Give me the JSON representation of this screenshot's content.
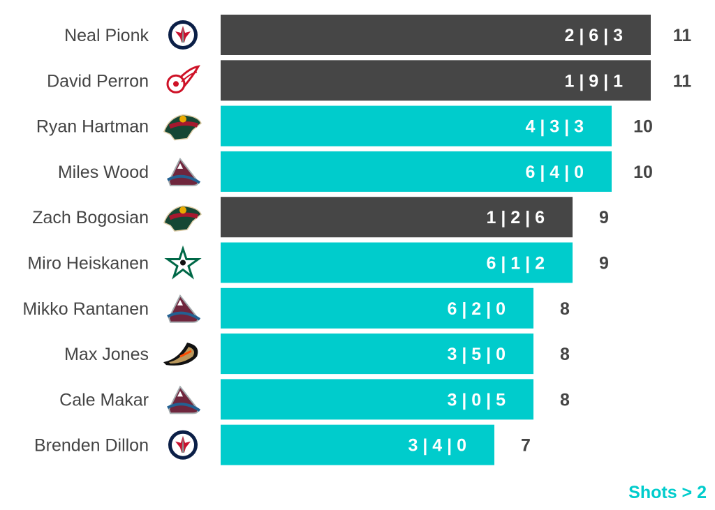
{
  "chart_data": {
    "type": "bar",
    "orientation": "horizontal",
    "categories": [
      "Neal Pionk",
      "David Perron",
      "Ryan Hartman",
      "Miles Wood",
      "Zach Bogosian",
      "Miro Heiskanen",
      "Mikko Rantanen",
      "Max Jones",
      "Cale Makar",
      "Brenden Dillon"
    ],
    "values": [
      11,
      11,
      10,
      10,
      9,
      9,
      8,
      8,
      8,
      7
    ],
    "breakdowns": [
      "2 | 6 | 3",
      "1 | 9 | 1",
      "4 | 3 | 3",
      "6 | 4 | 0",
      "1 | 2 | 6",
      "6 | 1 | 2",
      "6 | 2 | 0",
      "3 | 5 | 0",
      "3 | 0 | 5",
      "3 | 4 | 0"
    ],
    "highlight": [
      false,
      false,
      true,
      true,
      false,
      true,
      true,
      true,
      true,
      true
    ],
    "team_logos": [
      "winnipeg-jets",
      "detroit-red-wings",
      "minnesota-wild",
      "colorado-avalanche",
      "minnesota-wild",
      "dallas-stars",
      "colorado-avalanche",
      "anaheim-ducks",
      "colorado-avalanche",
      "winnipeg-jets"
    ],
    "xlim": [
      0,
      11
    ],
    "grid": false,
    "colors": {
      "default": "#464646",
      "highlight": "#00CCCC",
      "note": "#00CCCC"
    },
    "annotation": "Shots > 2"
  }
}
